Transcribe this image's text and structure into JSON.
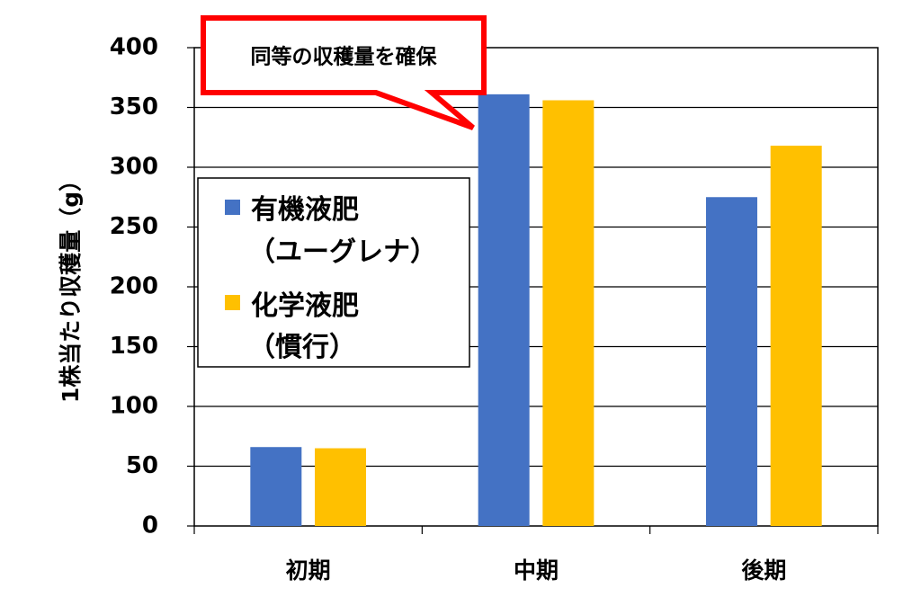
{
  "chart_data": {
    "type": "bar",
    "categories": [
      "初期",
      "中期",
      "後期"
    ],
    "series": [
      {
        "name": "有機液肥（ユーグレナ）",
        "legend_lines": [
          "有機液肥",
          "（ユーグレナ）"
        ],
        "color": "#4472C4",
        "values": [
          66,
          361,
          275
        ]
      },
      {
        "name": "化学液肥（慣行）",
        "legend_lines": [
          "化学液肥",
          "（慣行）"
        ],
        "color": "#FFC000",
        "values": [
          65,
          356,
          318
        ]
      }
    ],
    "ylabel": "1株当たり収穫量（g）",
    "ylim": [
      0,
      400
    ],
    "yticks": [
      0,
      50,
      100,
      150,
      200,
      250,
      300,
      350,
      400
    ],
    "grid": true,
    "legend_position": "left-middle",
    "annotation": {
      "text": "同等の収穫量を確保",
      "border_color": "#FF0000"
    }
  }
}
